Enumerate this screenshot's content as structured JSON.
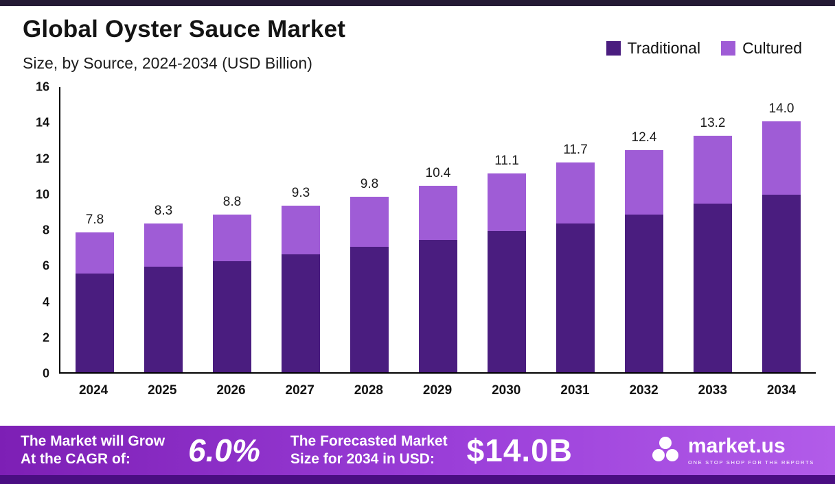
{
  "header": {
    "title": "Global Oyster Sauce Market",
    "subtitle": "Size, by Source, 2024-2034 (USD Billion)"
  },
  "legend": [
    {
      "label": "Traditional",
      "color": "#4a1d7f"
    },
    {
      "label": "Cultured",
      "color": "#9f5cd6"
    }
  ],
  "colors": {
    "traditional": "#4a1d7f",
    "cultured": "#9f5cd6",
    "footer_gradient_start": "#7d1fb5",
    "footer_gradient_end": "#b25ce9",
    "bottom_strip": "#4a0e82",
    "top_bar": "#241a35"
  },
  "chart_data": {
    "type": "bar",
    "stacked": true,
    "title": "Global Oyster Sauce Market",
    "subtitle": "Size, by Source, 2024-2034 (USD Billion)",
    "categories": [
      "2024",
      "2025",
      "2026",
      "2027",
      "2028",
      "2029",
      "2030",
      "2031",
      "2032",
      "2033",
      "2034"
    ],
    "series": [
      {
        "name": "Traditional",
        "color": "#4a1d7f",
        "values": [
          5.5,
          5.9,
          6.2,
          6.6,
          7.0,
          7.4,
          7.9,
          8.3,
          8.8,
          9.4,
          9.9
        ]
      },
      {
        "name": "Cultured",
        "color": "#9f5cd6",
        "values": [
          2.3,
          2.4,
          2.6,
          2.7,
          2.8,
          3.0,
          3.2,
          3.4,
          3.6,
          3.8,
          4.1
        ]
      }
    ],
    "totals": [
      7.8,
      8.3,
      8.8,
      9.3,
      9.8,
      10.4,
      11.1,
      11.7,
      12.4,
      13.2,
      14.0
    ],
    "xlabel": "",
    "ylabel": "",
    "ylim": [
      0,
      16
    ],
    "yticks": [
      0,
      2,
      4,
      6,
      8,
      10,
      12,
      14,
      16
    ],
    "grid": false,
    "legend_position": "top-right"
  },
  "footer": {
    "cagr_line1": "The Market will Grow",
    "cagr_line2": "At the CAGR of:",
    "cagr_value": "6.0%",
    "forecast_line1": "The Forecasted Market",
    "forecast_line2": "Size for 2034 in USD:",
    "forecast_value": "$14.0B",
    "logo_text": "market.us",
    "logo_tagline": "ONE STOP SHOP FOR THE REPORTS"
  }
}
